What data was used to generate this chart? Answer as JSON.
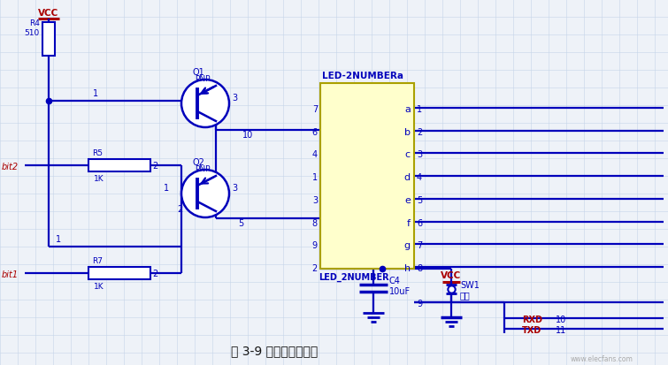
{
  "bg_color": "#eef2f8",
  "grid_color": "#c5d5e8",
  "title": "图 3-9 数码管显示电路",
  "watermark": "www.elecfans.com",
  "blue": "#0000bb",
  "dark_blue": "#000099",
  "red": "#aa0000",
  "yellow_fill": "#ffffcc",
  "black": "#111111",
  "pin_labels": [
    "a",
    "b",
    "c",
    "d",
    "e",
    "f",
    "g",
    "h"
  ],
  "pin_nums_left": [
    7,
    6,
    4,
    1,
    3,
    8,
    9,
    2
  ],
  "pin_nums_right": [
    1,
    2,
    3,
    4,
    5,
    6,
    7,
    8
  ]
}
